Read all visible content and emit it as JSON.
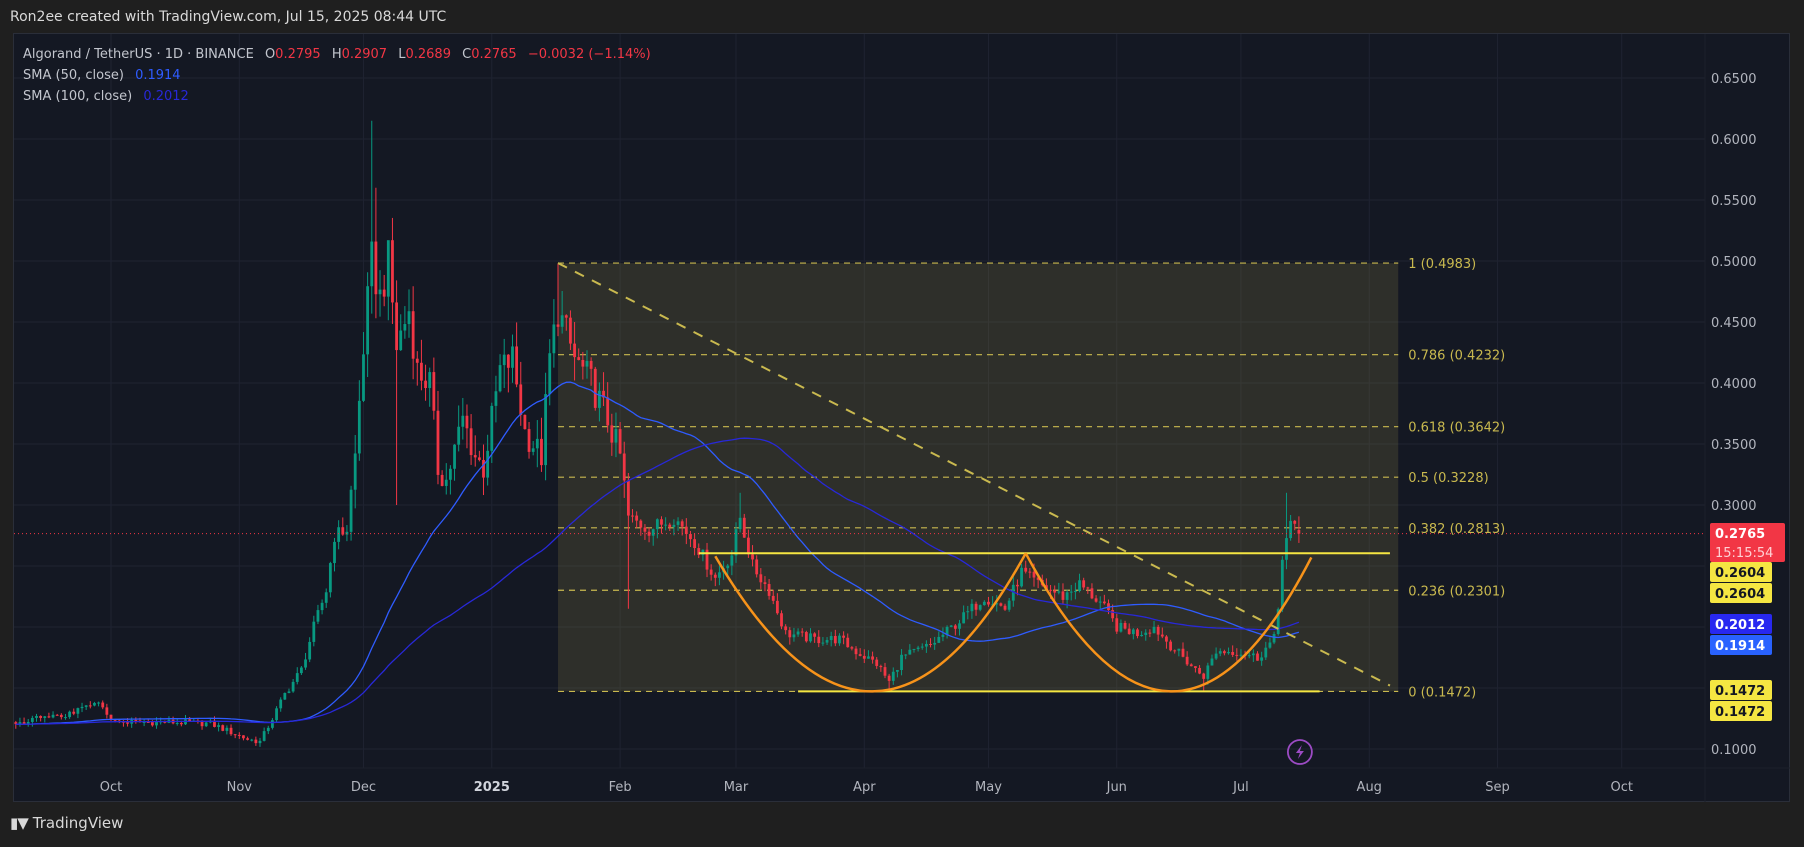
{
  "header": {
    "credit": "Ron2ee created with TradingView.com, Jul 15, 2025 08:44 UTC"
  },
  "legend": {
    "symbol": "Algorand / TetherUS · 1D · BINANCE",
    "o_label": "O",
    "o": "0.2795",
    "h_label": "H",
    "h": "0.2907",
    "l_label": "L",
    "l": "0.2689",
    "c_label": "C",
    "c": "0.2765",
    "change": "−0.0032 (−1.14%)",
    "sma50_label": "SMA (50, close)",
    "sma50_value": "0.1914",
    "sma100_label": "SMA (100, close)",
    "sma100_value": "0.2012"
  },
  "footer": {
    "brand": "TradingView",
    "logo_glyph": "TV"
  },
  "colors": {
    "up": "#089981",
    "down": "#f23645",
    "sma50": "#2f5cff",
    "sma100": "#2828d8",
    "fib": "#c9b94f",
    "levels": "#f5e642",
    "cup": "#f7931a",
    "grid": "#1f2331",
    "axis_text": "#b2b5be",
    "alert": "#9c4bc4"
  },
  "chart_data": {
    "type": "candlestick",
    "symbol": "ALGOUSDT",
    "interval": "1D",
    "scale": "linear",
    "ylim": [
      0.065,
      0.68
    ],
    "xlim": [
      "2024-09-08",
      "2025-10-22"
    ],
    "grid": true,
    "price_ticks": [
      "0.6500",
      "0.6000",
      "0.5500",
      "0.5000",
      "0.4500",
      "0.4000",
      "0.3500",
      "0.3000",
      "0.1000"
    ],
    "time_ticks": [
      {
        "label": "Oct",
        "date": "2024-10-01"
      },
      {
        "label": "Nov",
        "date": "2024-11-01"
      },
      {
        "label": "Dec",
        "date": "2024-12-01"
      },
      {
        "label": "2025",
        "date": "2025-01-01",
        "bold": true
      },
      {
        "label": "Feb",
        "date": "2025-02-01"
      },
      {
        "label": "Mar",
        "date": "2025-03-01"
      },
      {
        "label": "Apr",
        "date": "2025-04-01"
      },
      {
        "label": "May",
        "date": "2025-05-01"
      },
      {
        "label": "Jun",
        "date": "2025-06-01"
      },
      {
        "label": "Jul",
        "date": "2025-07-01"
      },
      {
        "label": "Aug",
        "date": "2025-08-01"
      },
      {
        "label": "Sep",
        "date": "2025-09-01"
      },
      {
        "label": "Oct",
        "date": "2025-10-01"
      }
    ],
    "close_path": [
      [
        "2024-09-08",
        0.122
      ],
      [
        "2024-09-20",
        0.128
      ],
      [
        "2024-09-28",
        0.137
      ],
      [
        "2024-10-02",
        0.122
      ],
      [
        "2024-10-15",
        0.122
      ],
      [
        "2024-10-25",
        0.121
      ],
      [
        "2024-11-03",
        0.108
      ],
      [
        "2024-11-06",
        0.106
      ],
      [
        "2024-11-09",
        0.125
      ],
      [
        "2024-11-12",
        0.145
      ],
      [
        "2024-11-16",
        0.165
      ],
      [
        "2024-11-19",
        0.2
      ],
      [
        "2024-11-22",
        0.23
      ],
      [
        "2024-11-24",
        0.275
      ],
      [
        "2024-11-27",
        0.28
      ],
      [
        "2024-11-29",
        0.34
      ],
      [
        "2024-12-01",
        0.43
      ],
      [
        "2024-12-03",
        0.5
      ],
      [
        "2024-12-05",
        0.47
      ],
      [
        "2024-12-07",
        0.5
      ],
      [
        "2024-12-09",
        0.43
      ],
      [
        "2024-12-12",
        0.46
      ],
      [
        "2024-12-14",
        0.41
      ],
      [
        "2024-12-17",
        0.4
      ],
      [
        "2024-12-19",
        0.33
      ],
      [
        "2024-12-21",
        0.32
      ],
      [
        "2024-12-25",
        0.37
      ],
      [
        "2024-12-28",
        0.34
      ],
      [
        "2024-12-30",
        0.33
      ],
      [
        "2025-01-03",
        0.41
      ],
      [
        "2025-01-06",
        0.42
      ],
      [
        "2025-01-09",
        0.36
      ],
      [
        "2025-01-13",
        0.34
      ],
      [
        "2025-01-15",
        0.42
      ],
      [
        "2025-01-17",
        0.46
      ],
      [
        "2025-01-21",
        0.42
      ],
      [
        "2025-01-25",
        0.4
      ],
      [
        "2025-01-29",
        0.37
      ],
      [
        "2025-02-01",
        0.34
      ],
      [
        "2025-02-03",
        0.29
      ],
      [
        "2025-02-08",
        0.28
      ],
      [
        "2025-02-14",
        0.29
      ],
      [
        "2025-02-19",
        0.27
      ],
      [
        "2025-02-24",
        0.24
      ],
      [
        "2025-02-28",
        0.26
      ],
      [
        "2025-03-02",
        0.29
      ],
      [
        "2025-03-05",
        0.25
      ],
      [
        "2025-03-09",
        0.23
      ],
      [
        "2025-03-13",
        0.195
      ],
      [
        "2025-03-20",
        0.19
      ],
      [
        "2025-03-26",
        0.19
      ],
      [
        "2025-03-30",
        0.18
      ],
      [
        "2025-04-04",
        0.17
      ],
      [
        "2025-04-07",
        0.155
      ],
      [
        "2025-04-10",
        0.175
      ],
      [
        "2025-04-17",
        0.185
      ],
      [
        "2025-04-24",
        0.205
      ],
      [
        "2025-04-30",
        0.225
      ],
      [
        "2025-05-05",
        0.215
      ],
      [
        "2025-05-09",
        0.245
      ],
      [
        "2025-05-13",
        0.235
      ],
      [
        "2025-05-19",
        0.225
      ],
      [
        "2025-05-23",
        0.235
      ],
      [
        "2025-05-28",
        0.22
      ],
      [
        "2025-06-01",
        0.2
      ],
      [
        "2025-06-06",
        0.195
      ],
      [
        "2025-06-10",
        0.2
      ],
      [
        "2025-06-14",
        0.185
      ],
      [
        "2025-06-20",
        0.165
      ],
      [
        "2025-06-22",
        0.16
      ],
      [
        "2025-06-25",
        0.18
      ],
      [
        "2025-06-30",
        0.18
      ],
      [
        "2025-07-05",
        0.175
      ],
      [
        "2025-07-09",
        0.19
      ],
      [
        "2025-07-10",
        0.215
      ],
      [
        "2025-07-11",
        0.26
      ],
      [
        "2025-07-12",
        0.272
      ],
      [
        "2025-07-13",
        0.283
      ],
      [
        "2025-07-14",
        0.2795
      ]
    ],
    "wick_highs": [
      [
        "2024-12-03",
        0.615
      ],
      [
        "2024-12-04",
        0.56
      ],
      [
        "2025-01-17",
        0.498
      ],
      [
        "2025-03-02",
        0.31
      ],
      [
        "2025-07-12",
        0.31
      ],
      [
        "2024-12-07",
        0.51
      ]
    ],
    "wick_lows": [
      [
        "2024-12-09",
        0.3
      ],
      [
        "2025-02-03",
        0.215
      ],
      [
        "2025-04-07",
        0.147
      ],
      [
        "2025-06-22",
        0.148
      ]
    ],
    "last_candle": {
      "date": "2025-07-15",
      "open": 0.2795,
      "high": 0.2907,
      "low": 0.2689,
      "close": 0.2765
    },
    "sma_periods": [
      50,
      100
    ],
    "fibonacci": {
      "start": "2025-01-17",
      "end": "2025-08-08",
      "levels": [
        {
          "ratio": 1,
          "price": 0.4983,
          "label": "1 (0.4983)"
        },
        {
          "ratio": 0.786,
          "price": 0.4232,
          "label": "0.786 (0.4232)"
        },
        {
          "ratio": 0.618,
          "price": 0.3642,
          "label": "0.618 (0.3642)"
        },
        {
          "ratio": 0.5,
          "price": 0.3228,
          "label": "0.5 (0.3228)"
        },
        {
          "ratio": 0.382,
          "price": 0.2813,
          "label": "0.382 (0.2813)"
        },
        {
          "ratio": 0.236,
          "price": 0.2301,
          "label": "0.236 (0.2301)"
        },
        {
          "ratio": 0,
          "price": 0.1472,
          "label": "0 (0.1472)"
        }
      ]
    },
    "trendline": [
      [
        "2025-01-17",
        0.4983
      ],
      [
        "2025-08-06",
        0.152
      ]
    ],
    "resistance": {
      "price": 0.2604,
      "from": "2025-02-20",
      "to": "2025-08-06"
    },
    "support": {
      "price": 0.1472,
      "from": "2025-03-16",
      "to": "2025-07-20"
    },
    "cups": [
      {
        "from": [
          "2025-02-24",
          0.258
        ],
        "bottom": [
          "2025-04-03",
          0.1472
        ],
        "to": [
          "2025-05-10",
          0.2604
        ]
      },
      {
        "from": [
          "2025-05-10",
          0.2604
        ],
        "bottom": [
          "2025-06-14",
          0.1472
        ],
        "to": [
          "2025-07-18",
          0.257
        ]
      }
    ],
    "current_price": 0.2765,
    "badges": [
      {
        "value": "0.2765",
        "sub": "15:15:54",
        "price": 0.2765,
        "bg": "#f23645",
        "fg": "#ffffff"
      },
      {
        "value": "0.2604",
        "price": 0.2604,
        "bg": "#f5e642",
        "fg": "#131722"
      },
      {
        "value": "0.2604",
        "price": 0.2604,
        "bg": "#f5e642",
        "fg": "#131722"
      },
      {
        "value": "0.2012",
        "price": 0.2012,
        "bg": "#2828f0",
        "fg": "#ffffff"
      },
      {
        "value": "0.1914",
        "price": 0.1914,
        "bg": "#2962ff",
        "fg": "#ffffff"
      },
      {
        "value": "0.1472",
        "price": 0.1472,
        "bg": "#f5e642",
        "fg": "#131722"
      },
      {
        "value": "0.1472",
        "price": 0.1472,
        "bg": "#f5e642",
        "fg": "#131722"
      }
    ],
    "alert_icon": "lightning-icon"
  }
}
